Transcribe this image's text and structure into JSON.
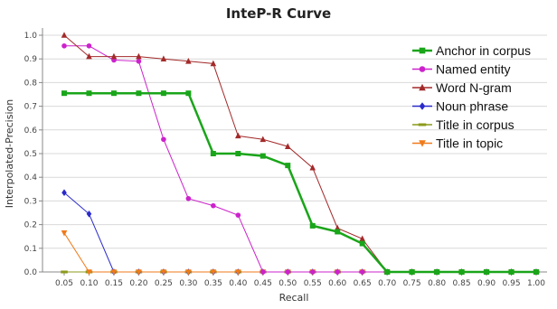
{
  "chart_data": {
    "type": "line",
    "title": "InteP-R Curve",
    "xlabel": "Recall",
    "ylabel": "Interpolated-Precision",
    "x": [
      0.05,
      0.1,
      0.15,
      0.2,
      0.25,
      0.3,
      0.35,
      0.4,
      0.45,
      0.5,
      0.55,
      0.6,
      0.65,
      0.7,
      0.75,
      0.8,
      0.85,
      0.9,
      0.95,
      1.0
    ],
    "x_tick_labels": [
      "0.05",
      "0.10",
      "0.15",
      "0.20",
      "0.25",
      "0.30",
      "0.35",
      "0.40",
      "0.45",
      "0.50",
      "0.55",
      "0.60",
      "0.65",
      "0.70",
      "0.75",
      "0.80",
      "0.85",
      "0.90",
      "0.95",
      "1.00"
    ],
    "y_tick_labels": [
      "0.0",
      "0.1",
      "0.2",
      "0.3",
      "0.4",
      "0.5",
      "0.6",
      "0.7",
      "0.8",
      "0.9",
      "1.0"
    ],
    "xlim": [
      0.05,
      1.0
    ],
    "ylim": [
      0,
      1.0
    ],
    "grid": "horizontal",
    "legend_position": "top-right",
    "series": [
      {
        "name": "Anchor in corpus",
        "color": "#1aa51a",
        "marker": "square",
        "width": 2.5,
        "values": [
          0.755,
          0.755,
          0.755,
          0.755,
          0.755,
          0.755,
          0.5,
          0.5,
          0.49,
          0.45,
          0.195,
          0.17,
          0.12,
          0,
          0,
          0,
          0,
          0,
          0,
          0
        ]
      },
      {
        "name": "Named entity",
        "color": "#cc22cc",
        "marker": "circle",
        "width": 1,
        "values": [
          0.955,
          0.955,
          0.895,
          0.89,
          0.56,
          0.31,
          0.28,
          0.24,
          0,
          0,
          0,
          0,
          0,
          0,
          0,
          0,
          0,
          0,
          0,
          0
        ]
      },
      {
        "name": "Word N-gram",
        "color": "#a32a2a",
        "marker": "triangle",
        "width": 1,
        "values": [
          1.0,
          0.91,
          0.91,
          0.91,
          0.9,
          0.89,
          0.88,
          0.575,
          0.56,
          0.53,
          0.44,
          0.185,
          0.14,
          0,
          0,
          0,
          0,
          0,
          0,
          0
        ]
      },
      {
        "name": "Noun phrase",
        "color": "#2a2acc",
        "marker": "diamond",
        "width": 1,
        "values": [
          0.335,
          0.245,
          0,
          0,
          0,
          0,
          0,
          0,
          0,
          0,
          0,
          0,
          0,
          0,
          0,
          0,
          0,
          0,
          0,
          0
        ]
      },
      {
        "name": "Title in corpus",
        "color": "#8c9a1a",
        "marker": "dash",
        "width": 1,
        "values": [
          0,
          0,
          0,
          0,
          0,
          0,
          0,
          0,
          0,
          0,
          0,
          0,
          0,
          0,
          0,
          0,
          0,
          0,
          0,
          0
        ]
      },
      {
        "name": "Title in topic",
        "color": "#f07a1a",
        "marker": "triangle-down",
        "width": 1,
        "values": [
          0.165,
          0,
          0,
          0,
          0,
          0,
          0,
          0,
          0,
          0,
          0,
          0,
          0,
          0,
          0,
          0,
          0,
          0,
          0,
          0
        ]
      }
    ]
  }
}
